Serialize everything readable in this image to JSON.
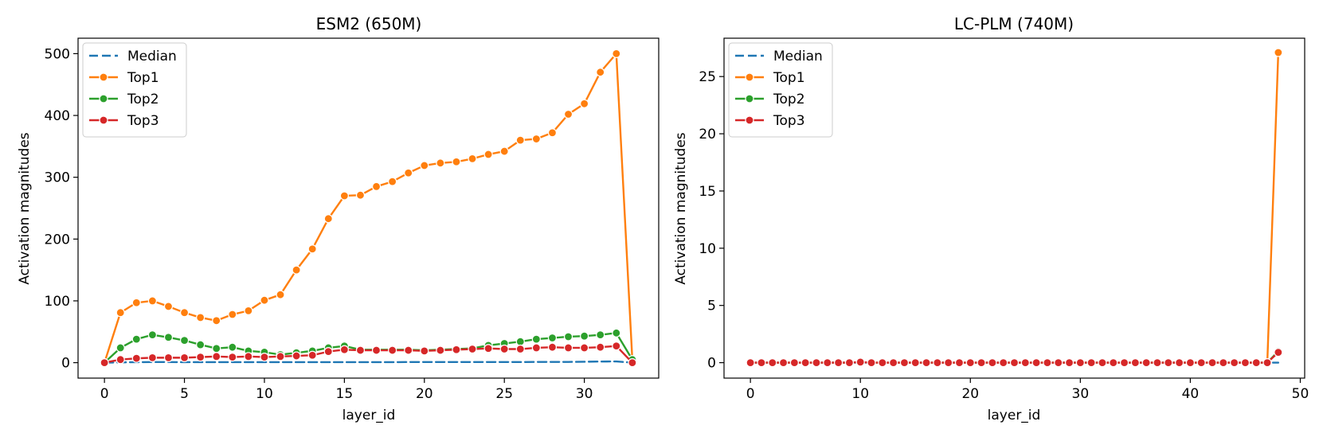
{
  "chart_data": [
    {
      "type": "line",
      "title": "ESM2 (650M)",
      "xlabel": "layer_id",
      "ylabel": "Activation magnitudes",
      "xlim": [
        -1.65,
        34.65
      ],
      "ylim": [
        -25,
        525
      ],
      "xticks": [
        0,
        5,
        10,
        15,
        20,
        25,
        30
      ],
      "yticks": [
        0,
        100,
        200,
        300,
        400,
        500
      ],
      "grid": false,
      "legend_position": "top-left",
      "x": [
        0,
        1,
        2,
        3,
        4,
        5,
        6,
        7,
        8,
        9,
        10,
        11,
        12,
        13,
        14,
        15,
        16,
        17,
        18,
        19,
        20,
        21,
        22,
        23,
        24,
        25,
        26,
        27,
        28,
        29,
        30,
        31,
        32,
        33
      ],
      "series": [
        {
          "name": "Median",
          "style": "dashed",
          "color": "#1f77b4",
          "markers": false,
          "values": [
            0,
            0.5,
            0.8,
            1,
            1,
            0.8,
            0.8,
            0.8,
            0.8,
            0.8,
            0.8,
            0.8,
            0.8,
            0.8,
            0.8,
            0.8,
            0.8,
            0.8,
            0.8,
            1,
            1,
            1,
            1,
            1,
            1,
            1,
            1,
            1.2,
            1.2,
            1.2,
            1.5,
            1.8,
            2,
            0
          ]
        },
        {
          "name": "Top1",
          "style": "solid",
          "color": "#ff7f0e",
          "markers": true,
          "values": [
            0,
            81,
            97,
            100,
            91,
            81,
            73,
            68,
            78,
            84,
            101,
            110,
            150,
            184,
            233,
            270,
            271,
            285,
            293,
            307,
            319,
            323,
            325,
            330,
            337,
            342,
            360,
            362,
            372,
            402,
            419,
            470,
            500,
            5
          ]
        },
        {
          "name": "Top2",
          "style": "solid",
          "color": "#2ca02c",
          "markers": true,
          "values": [
            0,
            24,
            38,
            45,
            41,
            36,
            29,
            23,
            25,
            19,
            17,
            13,
            16,
            19,
            24,
            27,
            21,
            21,
            21,
            21,
            20,
            21,
            22,
            23,
            28,
            31,
            34,
            38,
            40,
            42,
            43,
            45,
            48,
            5
          ]
        },
        {
          "name": "Top3",
          "style": "solid",
          "color": "#d62728",
          "markers": true,
          "values": [
            0,
            5,
            7,
            8,
            8,
            8,
            9,
            10,
            9,
            10,
            9,
            10,
            11,
            12,
            18,
            21,
            20,
            20,
            20,
            20,
            19,
            20,
            21,
            22,
            23,
            22,
            22,
            24,
            25,
            24,
            24,
            25,
            27,
            0
          ]
        }
      ]
    },
    {
      "type": "line",
      "title": "LC-PLM (740M)",
      "xlabel": "layer_id",
      "ylabel": "Activation magnitudes",
      "xlim": [
        -2.4,
        50.4
      ],
      "ylim": [
        -1.35,
        28.35
      ],
      "xticks": [
        0,
        10,
        20,
        30,
        40,
        50
      ],
      "yticks": [
        0,
        5,
        10,
        15,
        20,
        25
      ],
      "grid": false,
      "legend_position": "top-left",
      "x": [
        0,
        1,
        2,
        3,
        4,
        5,
        6,
        7,
        8,
        9,
        10,
        11,
        12,
        13,
        14,
        15,
        16,
        17,
        18,
        19,
        20,
        21,
        22,
        23,
        24,
        25,
        26,
        27,
        28,
        29,
        30,
        31,
        32,
        33,
        34,
        35,
        36,
        37,
        38,
        39,
        40,
        41,
        42,
        43,
        44,
        45,
        46,
        47,
        48
      ],
      "series": [
        {
          "name": "Median",
          "style": "dashed",
          "color": "#1f77b4",
          "markers": false,
          "values": [
            0,
            0,
            0,
            0,
            0,
            0,
            0,
            0,
            0,
            0,
            0,
            0,
            0,
            0,
            0,
            0,
            0,
            0,
            0,
            0,
            0,
            0,
            0,
            0,
            0,
            0,
            0,
            0,
            0,
            0,
            0,
            0,
            0,
            0,
            0,
            0,
            0,
            0,
            0,
            0,
            0,
            0,
            0,
            0,
            0,
            0,
            0,
            0,
            0
          ]
        },
        {
          "name": "Top1",
          "style": "solid",
          "color": "#ff7f0e",
          "markers": true,
          "values": [
            0,
            0,
            0,
            0,
            0,
            0,
            0,
            0,
            0,
            0,
            0.05,
            0,
            0,
            0,
            0,
            0,
            0,
            0,
            0,
            0,
            0,
            0,
            0,
            0,
            0,
            0,
            0,
            0,
            0,
            0,
            0,
            0,
            0,
            0,
            0,
            0,
            0,
            0,
            0,
            0,
            0,
            0,
            0,
            0,
            0,
            0,
            0,
            0,
            27.1
          ]
        },
        {
          "name": "Top2",
          "style": "solid",
          "color": "#2ca02c",
          "markers": true,
          "values": [
            0,
            0,
            0,
            0,
            0,
            0,
            0,
            0,
            0,
            0,
            0.05,
            0,
            0,
            0,
            0,
            0,
            0,
            0,
            0,
            0,
            0,
            0,
            0,
            0,
            0,
            0,
            0,
            0,
            0,
            0,
            0,
            0,
            0,
            0,
            0,
            0,
            0,
            0,
            0,
            0,
            0,
            0,
            0,
            0,
            0,
            0,
            0,
            0,
            1.0
          ]
        },
        {
          "name": "Top3",
          "style": "solid",
          "color": "#d62728",
          "markers": true,
          "values": [
            0,
            0,
            0,
            0,
            0,
            0,
            0,
            0,
            0,
            0,
            0.05,
            0,
            0,
            0,
            0,
            0,
            0,
            0,
            0,
            0,
            0,
            0,
            0,
            0,
            0,
            0,
            0,
            0,
            0,
            0,
            0,
            0,
            0,
            0,
            0,
            0,
            0,
            0,
            0,
            0,
            0,
            0,
            0,
            0,
            0,
            0,
            0,
            0,
            0.9
          ]
        }
      ]
    }
  ]
}
